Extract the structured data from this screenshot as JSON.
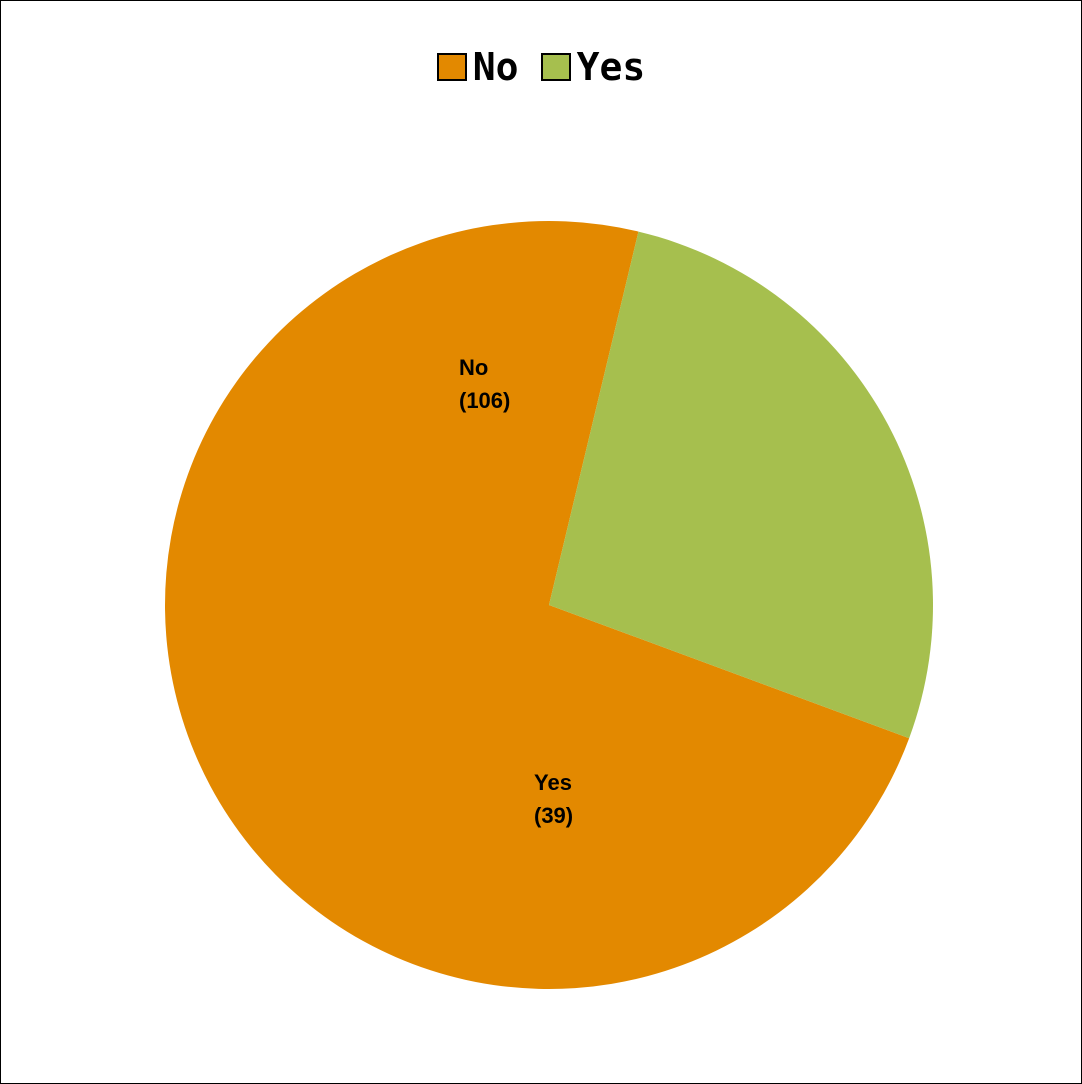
{
  "chart_data": {
    "type": "pie",
    "legend_position": "top",
    "slices": [
      {
        "name": "No",
        "value": 106,
        "label_line1": "No",
        "label_line2": "(106)",
        "color": "#E38900"
      },
      {
        "name": "Yes",
        "value": 39,
        "label_line1": "Yes",
        "label_line2": "(39)",
        "color": "#A6BF4E"
      }
    ]
  }
}
